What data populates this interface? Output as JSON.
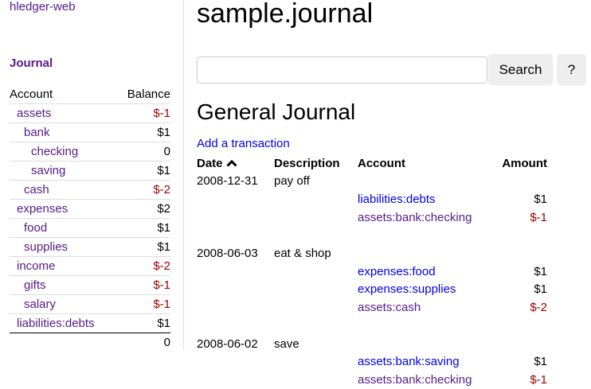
{
  "sidebar": {
    "brand": "hledger-web",
    "journal_link": "Journal",
    "headers": {
      "account": "Account",
      "balance": "Balance"
    },
    "accounts": [
      {
        "name": "assets",
        "indent": 1,
        "balance": "$-1",
        "negative": true
      },
      {
        "name": "bank",
        "indent": 2,
        "balance": "$1",
        "negative": false
      },
      {
        "name": "checking",
        "indent": 3,
        "balance": "0",
        "negative": false
      },
      {
        "name": "saving",
        "indent": 3,
        "balance": "$1",
        "negative": false
      },
      {
        "name": "cash",
        "indent": 2,
        "balance": "$-2",
        "negative": true
      },
      {
        "name": "expenses",
        "indent": 1,
        "balance": "$2",
        "negative": false
      },
      {
        "name": "food",
        "indent": 2,
        "balance": "$1",
        "negative": false
      },
      {
        "name": "supplies",
        "indent": 2,
        "balance": "$1",
        "negative": false
      },
      {
        "name": "income",
        "indent": 1,
        "balance": "$-2",
        "negative": true
      },
      {
        "name": "gifts",
        "indent": 2,
        "balance": "$-1",
        "negative": true
      },
      {
        "name": "salary",
        "indent": 2,
        "balance": "$-1",
        "negative": true
      },
      {
        "name": "liabilities:debts",
        "indent": 1,
        "balance": "$1",
        "negative": false
      }
    ],
    "total": "0"
  },
  "main": {
    "title": "sample.journal",
    "search": {
      "value": "",
      "placeholder": ""
    },
    "search_button": "Search",
    "help_button": "?",
    "heading": "General Journal",
    "add_transaction": "Add a transaction",
    "columns": {
      "date": "Date",
      "date_sort_icon": "chevron-up-icon",
      "description": "Description",
      "account": "Account",
      "amount": "Amount"
    },
    "transactions": [
      {
        "date": "2008-12-31",
        "description": "pay off",
        "postings": [
          {
            "account": "liabilities:debts",
            "amount": "$1",
            "visited": false,
            "negative": false
          },
          {
            "account": "assets:bank:checking",
            "amount": "$-1",
            "visited": true,
            "negative": true
          }
        ]
      },
      {
        "date": "2008-06-03",
        "description": "eat & shop",
        "postings": [
          {
            "account": "expenses:food",
            "amount": "$1",
            "visited": false,
            "negative": false
          },
          {
            "account": "expenses:supplies",
            "amount": "$1",
            "visited": false,
            "negative": false
          },
          {
            "account": "assets:cash",
            "amount": "$-2",
            "visited": true,
            "negative": true
          }
        ]
      },
      {
        "date": "2008-06-02",
        "description": "save",
        "postings": [
          {
            "account": "assets:bank:saving",
            "amount": "$1",
            "visited": false,
            "negative": false
          },
          {
            "account": "assets:bank:checking",
            "amount": "$-1",
            "visited": true,
            "negative": true
          }
        ]
      }
    ]
  },
  "colors": {
    "link": "#0000ee",
    "visited": "#551a8b",
    "negative": "#a00000"
  }
}
